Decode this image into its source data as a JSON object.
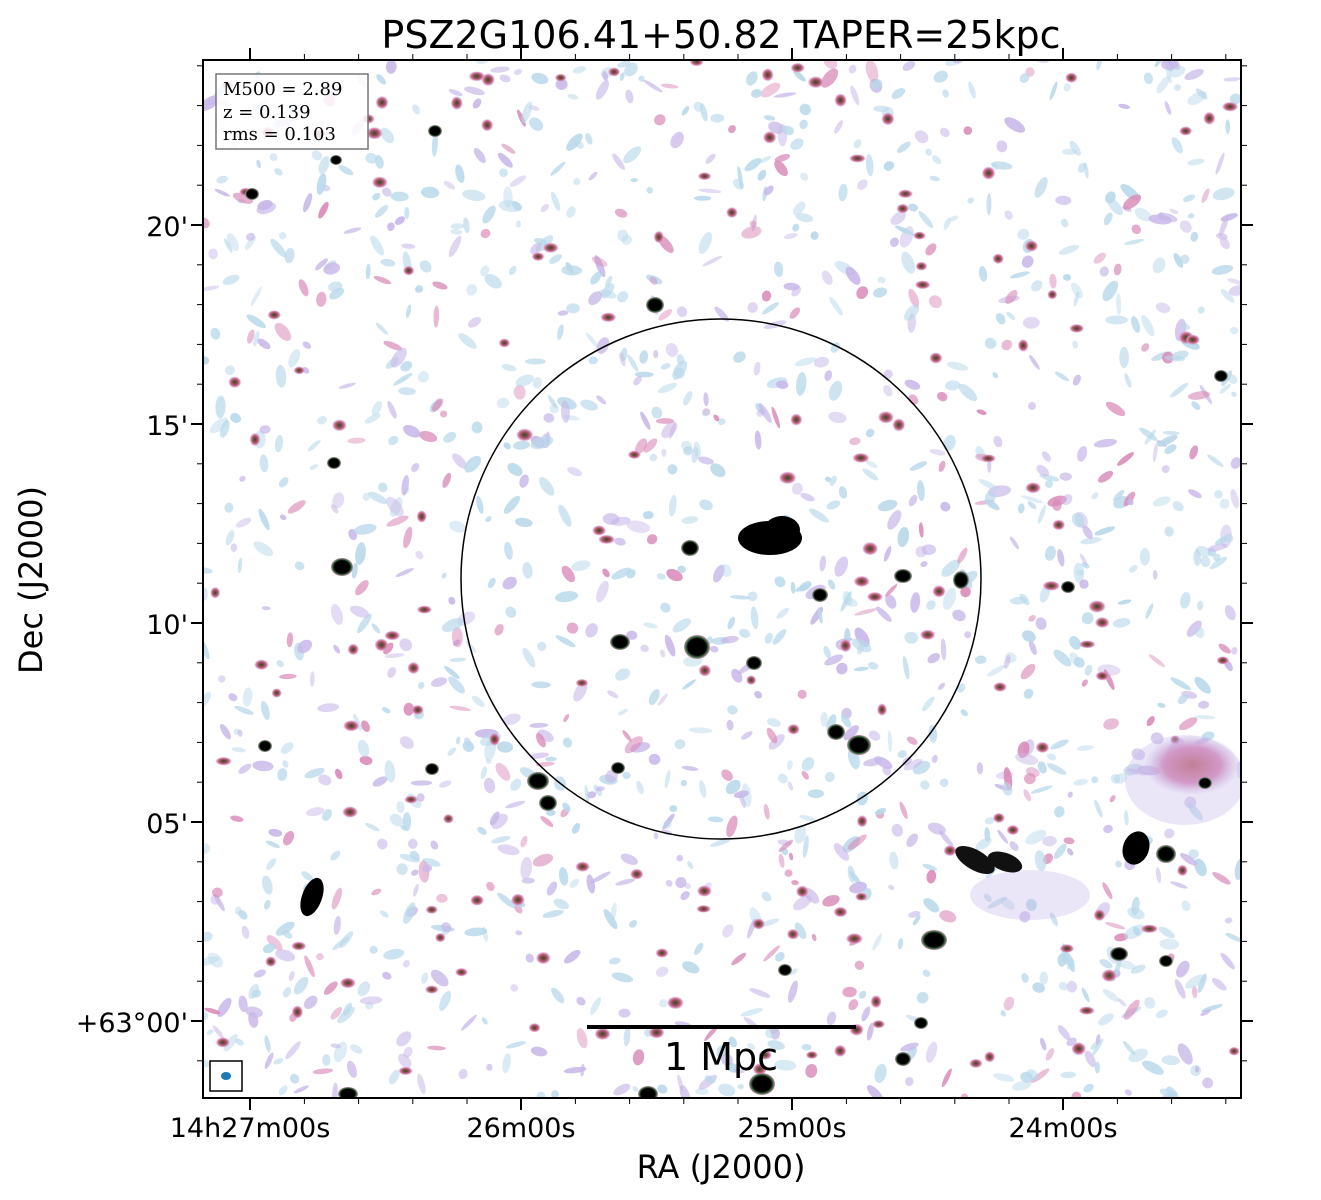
{
  "figure": {
    "title": "PSZ2G106.41+50.82 TAPER=25kpc",
    "xlabel": "RA (J2000)",
    "ylabel": "Dec (J2000)",
    "x_ticks": [
      "14h27m00s",
      "26m00s",
      "25m00s",
      "24m00s"
    ],
    "y_ticks": [
      "20'",
      "15'",
      "10'",
      "05'",
      "+63°00'"
    ],
    "info_box": {
      "m500": "M500 = 2.89",
      "z": "z = 0.139",
      "rms": "rms = 0.103"
    },
    "scale_bar": {
      "label": "1 Mpc"
    },
    "colors": {
      "noise_light": "#b8d8ea",
      "noise_mid": "#c7b6e8",
      "noise_pink": "#d98ab8",
      "emission_red": "#b25a5a",
      "source_core": "#000000",
      "source_ring": "#2f6b3a",
      "beam": "#1f77b4",
      "circle": "#000000"
    }
  }
}
